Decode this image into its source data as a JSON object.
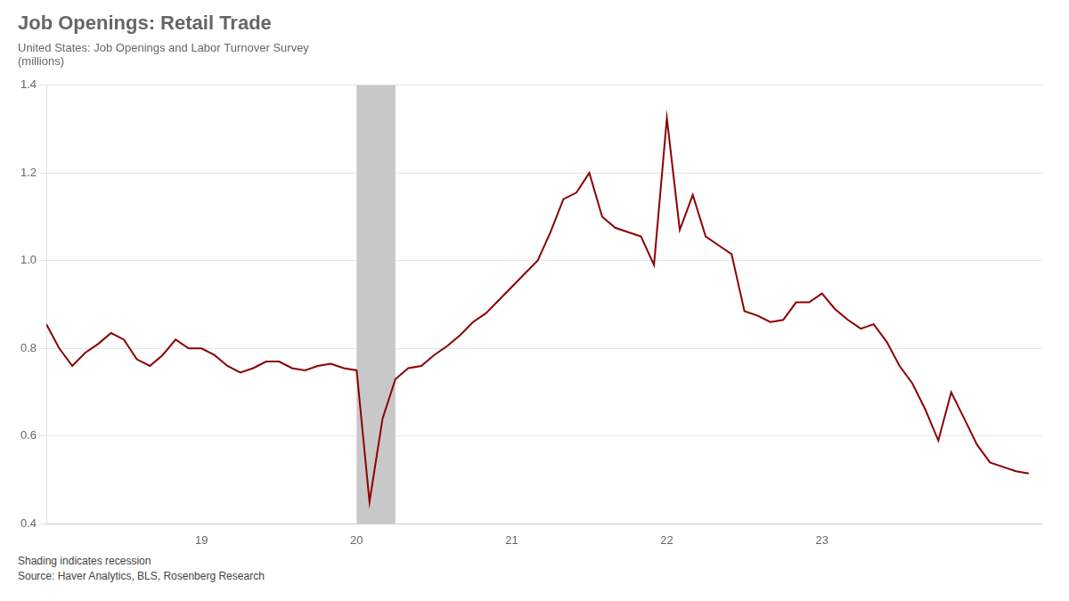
{
  "chart_data": {
    "type": "line",
    "title": "Job Openings: Retail Trade",
    "subtitle": [
      "United States: Job Openings and Labor Turnover Survey",
      "(millions)"
    ],
    "source": [
      "Shading indicates recession",
      "Source: Haver Analytics, BLS, Rosenberg Research"
    ],
    "color": "#8B0000",
    "shading": {
      "start": 2020.0,
      "end": 2020.25,
      "color": "#C8C8C8"
    },
    "xlim": [
      2018.0,
      2024.42
    ],
    "xticks": [
      {
        "value": 2019,
        "label": "19"
      },
      {
        "value": 2020,
        "label": "20"
      },
      {
        "value": 2021,
        "label": "21"
      },
      {
        "value": 2022,
        "label": "22"
      },
      {
        "value": 2023,
        "label": "23"
      }
    ],
    "ylim": [
      0.4,
      1.4
    ],
    "yticks": [
      0.4,
      0.6,
      0.8,
      {
        "value": 1.0,
        "label": "1.0"
      },
      1.2,
      1.4
    ],
    "grid": "y",
    "x": [
      2018.0,
      2018.083,
      2018.167,
      2018.25,
      2018.333,
      2018.417,
      2018.5,
      2018.583,
      2018.667,
      2018.75,
      2018.833,
      2018.917,
      2019.0,
      2019.083,
      2019.167,
      2019.25,
      2019.333,
      2019.417,
      2019.5,
      2019.583,
      2019.667,
      2019.75,
      2019.833,
      2019.917,
      2020.0,
      2020.083,
      2020.167,
      2020.25,
      2020.333,
      2020.417,
      2020.5,
      2020.583,
      2020.667,
      2020.75,
      2020.833,
      2020.917,
      2021.0,
      2021.083,
      2021.167,
      2021.25,
      2021.333,
      2021.417,
      2021.5,
      2021.583,
      2021.667,
      2021.75,
      2021.833,
      2021.917,
      2022.0,
      2022.083,
      2022.167,
      2022.25,
      2022.333,
      2022.417,
      2022.5,
      2022.583,
      2022.667,
      2022.75,
      2022.833,
      2022.917,
      2023.0,
      2023.083,
      2023.167,
      2023.25,
      2023.333,
      2023.417,
      2023.5,
      2023.583,
      2023.667,
      2023.75,
      2023.833,
      2023.917,
      2024.0,
      2024.083,
      2024.167,
      2024.25,
      2024.333
    ],
    "values": [
      0.855,
      0.8,
      0.76,
      0.79,
      0.81,
      0.835,
      0.82,
      0.775,
      0.76,
      0.785,
      0.82,
      0.8,
      0.8,
      0.785,
      0.76,
      0.745,
      0.755,
      0.77,
      0.77,
      0.755,
      0.75,
      0.76,
      0.765,
      0.755,
      0.75,
      0.45,
      0.64,
      0.73,
      0.755,
      0.76,
      0.785,
      0.805,
      0.83,
      0.86,
      0.88,
      0.91,
      0.94,
      0.97,
      1.0,
      1.065,
      1.14,
      1.155,
      1.2,
      1.1,
      1.075,
      1.065,
      1.055,
      0.99,
      1.325,
      1.07,
      1.15,
      1.055,
      1.035,
      1.015,
      0.885,
      0.875,
      0.86,
      0.865,
      0.905,
      0.905,
      0.925,
      0.89,
      0.865,
      0.845,
      0.855,
      0.815,
      0.76,
      0.72,
      0.66,
      0.59,
      0.7,
      0.64,
      0.58,
      0.54,
      0.53,
      0.52,
      0.515
    ]
  }
}
